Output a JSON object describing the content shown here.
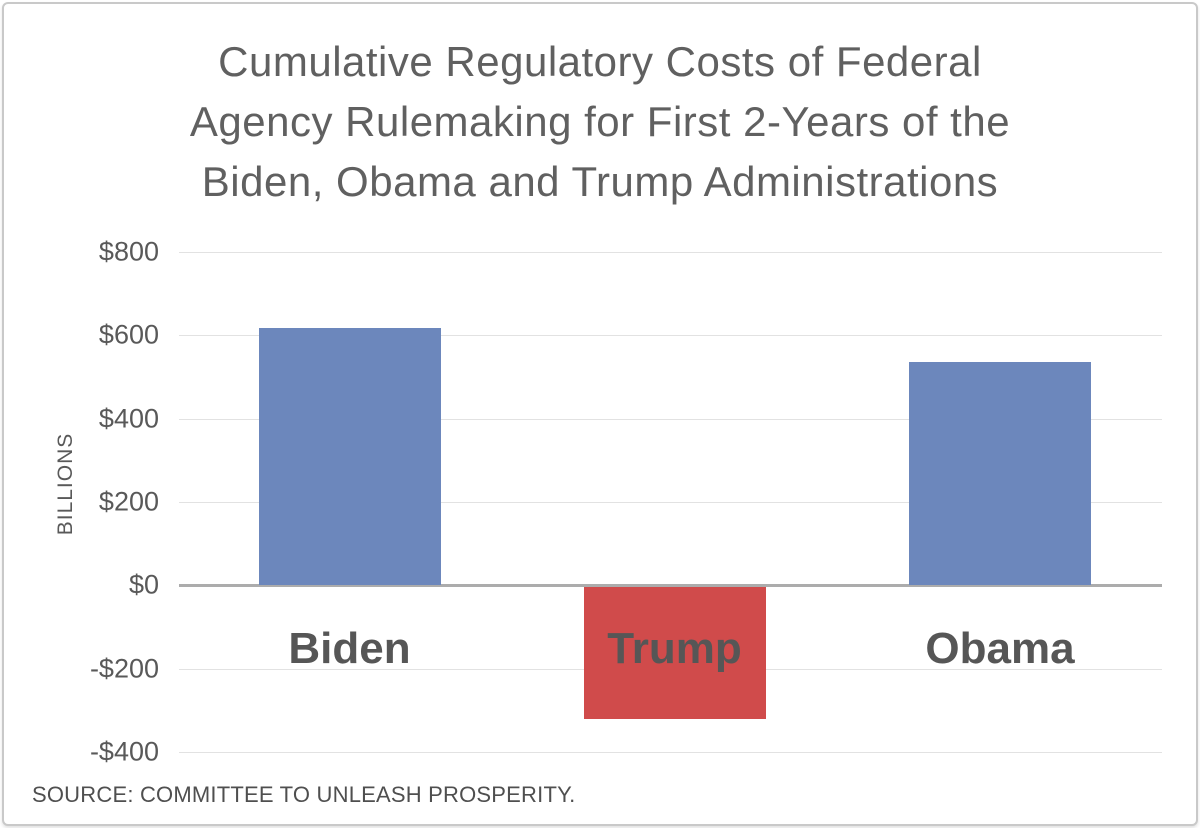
{
  "title": {
    "lines": [
      "Cumulative Regulatory Costs of Federal",
      "Agency Rulemaking for First 2-Years of the",
      "Biden, Obama and Trump Administrations"
    ]
  },
  "source_note": "SOURCE: COMMITTEE TO UNLEASH PROSPERITY.",
  "chart_data": {
    "type": "bar",
    "title": "Cumulative Regulatory Costs of Federal Agency Rulemaking for First 2-Years of the Biden, Obama and Trump Administrations",
    "xlabel": "",
    "ylabel": "BILLIONS",
    "unit": "billions of dollars",
    "categories": [
      "Biden",
      "Trump",
      "Obama"
    ],
    "values": [
      617,
      -318,
      537
    ],
    "bar_colors": [
      "#6C87BC",
      "#D04B4B",
      "#6C87BC"
    ],
    "ylim": [
      -400,
      800
    ],
    "ytick_step": 200,
    "yticks": [
      {
        "value": 800,
        "label": "$800"
      },
      {
        "value": 600,
        "label": "$600"
      },
      {
        "value": 400,
        "label": "$400"
      },
      {
        "value": 200,
        "label": "$200"
      },
      {
        "value": 0,
        "label": "$0"
      },
      {
        "value": -200,
        "label": "-$200"
      },
      {
        "value": -400,
        "label": "-$400"
      }
    ],
    "grid": "horizontal-light",
    "legend": "none",
    "zero_axis": true
  },
  "colors": {
    "blue_bar": "#6C87BC",
    "red_bar": "#D04B4B",
    "gridline": "#E2E2E2",
    "zero_axis": "#ACACAC",
    "text": "#595959",
    "title_text": "#606060",
    "frame_border": "#C9C9C9"
  }
}
